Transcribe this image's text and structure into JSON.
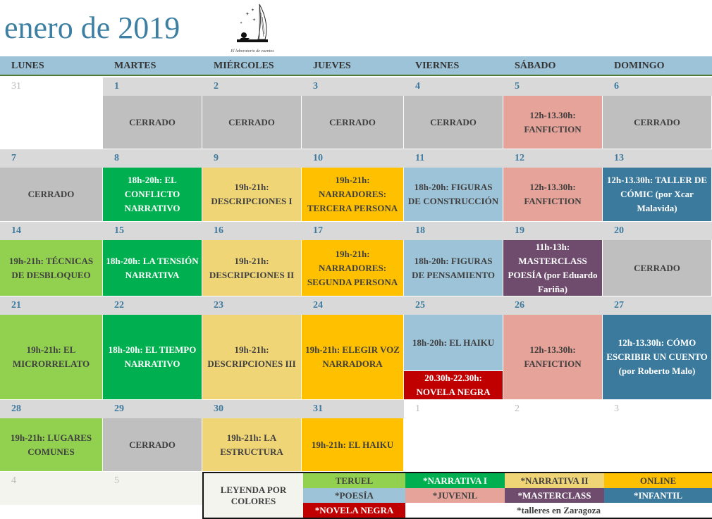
{
  "title": "enero de 2019",
  "logo_text": "El laboratorio de cuentos",
  "weekdays": [
    "LUNES",
    "MARTES",
    "MIÉRCOLES",
    "JUEVES",
    "VIERNES",
    "SÁBADO",
    "DOMINGO"
  ],
  "colors": {
    "date_row": "#d9d9d9",
    "cerrado": "#bfbfbf",
    "teruel": "#92d050",
    "narrativa1": "#00b050",
    "narrativa2": "#f0d577",
    "online": "#ffc000",
    "poesia": "#9dc3d8",
    "juvenil": "#e6a399",
    "masterclass": "#6f4c6e",
    "infantil": "#3b7a9c",
    "novela": "#c00000",
    "title": "#3d7fa3"
  },
  "weeks": [
    {
      "days": [
        {
          "num": "31",
          "out": true,
          "bg": "white"
        },
        {
          "num": "1",
          "events": [
            {
              "text": "CERRADO",
              "cat": "cerrado"
            }
          ]
        },
        {
          "num": "2",
          "events": [
            {
              "text": "CERRADO",
              "cat": "cerrado"
            }
          ]
        },
        {
          "num": "3",
          "events": [
            {
              "text": "CERRADO",
              "cat": "cerrado"
            }
          ]
        },
        {
          "num": "4",
          "events": [
            {
              "text": "CERRADO",
              "cat": "cerrado"
            }
          ]
        },
        {
          "num": "5",
          "events": [
            {
              "text": "12h-13.30h: FANFICTION",
              "cat": "juvenil"
            }
          ]
        },
        {
          "num": "6",
          "events": [
            {
              "text": "CERRADO",
              "cat": "cerrado"
            }
          ]
        }
      ]
    },
    {
      "days": [
        {
          "num": "7",
          "events": [
            {
              "text": "CERRADO",
              "cat": "cerrado"
            }
          ]
        },
        {
          "num": "8",
          "events": [
            {
              "text": "18h-20h: EL CONFLICTO NARRATIVO",
              "cat": "narrativa1"
            }
          ]
        },
        {
          "num": "9",
          "events": [
            {
              "text": "19h-21h: DESCRIPCIONES I",
              "cat": "narrativa2"
            }
          ]
        },
        {
          "num": "10",
          "events": [
            {
              "text": "19h-21h: NARRADORES: TERCERA PERSONA",
              "cat": "online"
            }
          ]
        },
        {
          "num": "11",
          "events": [
            {
              "text": "18h-20h: FIGURAS DE CONSTRUCCIÓN",
              "cat": "poesia"
            }
          ]
        },
        {
          "num": "12",
          "events": [
            {
              "text": "12h-13.30h: FANFICTION",
              "cat": "juvenil"
            }
          ]
        },
        {
          "num": "13",
          "events": [
            {
              "text": "12h-13.30h: TALLER DE CÓMIC (por Xcar Malavida)",
              "cat": "infantil"
            }
          ]
        }
      ]
    },
    {
      "days": [
        {
          "num": "14",
          "events": [
            {
              "text": "19h-21h: TÉCNICAS DE DESBLOQUEO",
              "cat": "teruel"
            }
          ]
        },
        {
          "num": "15",
          "events": [
            {
              "text": "18h-20h: LA TENSIÓN NARRATIVA",
              "cat": "narrativa1"
            }
          ]
        },
        {
          "num": "16",
          "events": [
            {
              "text": "19h-21h: DESCRIPCIONES II",
              "cat": "narrativa2"
            }
          ]
        },
        {
          "num": "17",
          "events": [
            {
              "text": "19h-21h: NARRADORES: SEGUNDA PERSONA",
              "cat": "online"
            }
          ]
        },
        {
          "num": "18",
          "events": [
            {
              "text": "18h-20h: FIGURAS DE PENSAMIENTO",
              "cat": "poesia"
            }
          ]
        },
        {
          "num": "19",
          "events": [
            {
              "text": "11h-13h: MASTERCLASS POESÍA (por Eduardo Fariña)",
              "cat": "masterclass"
            }
          ]
        },
        {
          "num": "20",
          "events": [
            {
              "text": "CERRADO",
              "cat": "cerrado"
            }
          ]
        }
      ]
    },
    {
      "days": [
        {
          "num": "21",
          "events": [
            {
              "text": "19h-21h: EL MICRORRELATO",
              "cat": "teruel"
            }
          ]
        },
        {
          "num": "22",
          "events": [
            {
              "text": "18h-20h: EL TIEMPO NARRATIVO",
              "cat": "narrativa1"
            }
          ]
        },
        {
          "num": "23",
          "events": [
            {
              "text": "19h-21h: DESCRIPCIONES III",
              "cat": "narrativa2"
            }
          ]
        },
        {
          "num": "24",
          "events": [
            {
              "text": "19h-21h: ELEGIR VOZ NARRADORA",
              "cat": "online"
            }
          ]
        },
        {
          "num": "25",
          "events": [
            {
              "text": "18h-20h: EL HAIKU",
              "cat": "poesia"
            },
            {
              "text": "20.30h-22.30h: NOVELA NEGRA",
              "cat": "novela"
            }
          ]
        },
        {
          "num": "26",
          "events": [
            {
              "text": "12h-13.30h: FANFICTION",
              "cat": "juvenil"
            }
          ]
        },
        {
          "num": "27",
          "events": [
            {
              "text": "12h-13.30h: CÓMO ESCRIBIR UN CUENTO (por Roberto Malo)",
              "cat": "infantil"
            }
          ]
        }
      ]
    },
    {
      "days": [
        {
          "num": "28",
          "events": [
            {
              "text": "19h-21h: LUGARES COMUNES",
              "cat": "teruel"
            }
          ]
        },
        {
          "num": "29",
          "events": [
            {
              "text": "CERRADO",
              "cat": "cerrado"
            }
          ]
        },
        {
          "num": "30",
          "events": [
            {
              "text": "19h-21h: LA ESTRUCTURA",
              "cat": "narrativa2"
            }
          ]
        },
        {
          "num": "31",
          "events": [
            {
              "text": "19h-21h: EL HAIKU",
              "cat": "online"
            }
          ]
        },
        {
          "num": "1",
          "out": true,
          "bg": "white"
        },
        {
          "num": "2",
          "out": true,
          "bg": "white"
        },
        {
          "num": "3",
          "out": true,
          "bg": "white"
        }
      ]
    },
    {
      "days": [
        {
          "num": "4",
          "out": true,
          "bg": "pale"
        },
        {
          "num": "5",
          "out": true,
          "bg": "pale"
        }
      ]
    }
  ],
  "legend": {
    "title": "LEYENDA POR COLORES",
    "items": [
      {
        "label": "TERUEL",
        "cat": "teruel"
      },
      {
        "label": "*NARRATIVA I",
        "cat": "narrativa1"
      },
      {
        "label": "*NARRATIVA II",
        "cat": "narrativa2"
      },
      {
        "label": "ONLINE",
        "cat": "online"
      },
      {
        "label": "*POESÍA",
        "cat": "poesia"
      },
      {
        "label": "*JUVENIL",
        "cat": "juvenil"
      },
      {
        "label": "*MASTERCLASS",
        "cat": "masterclass"
      },
      {
        "label": "*INFANTIL",
        "cat": "infantil"
      },
      {
        "label": "*NOVELA NEGRA",
        "cat": "novela"
      }
    ],
    "note": "*talleres en Zaragoza"
  }
}
